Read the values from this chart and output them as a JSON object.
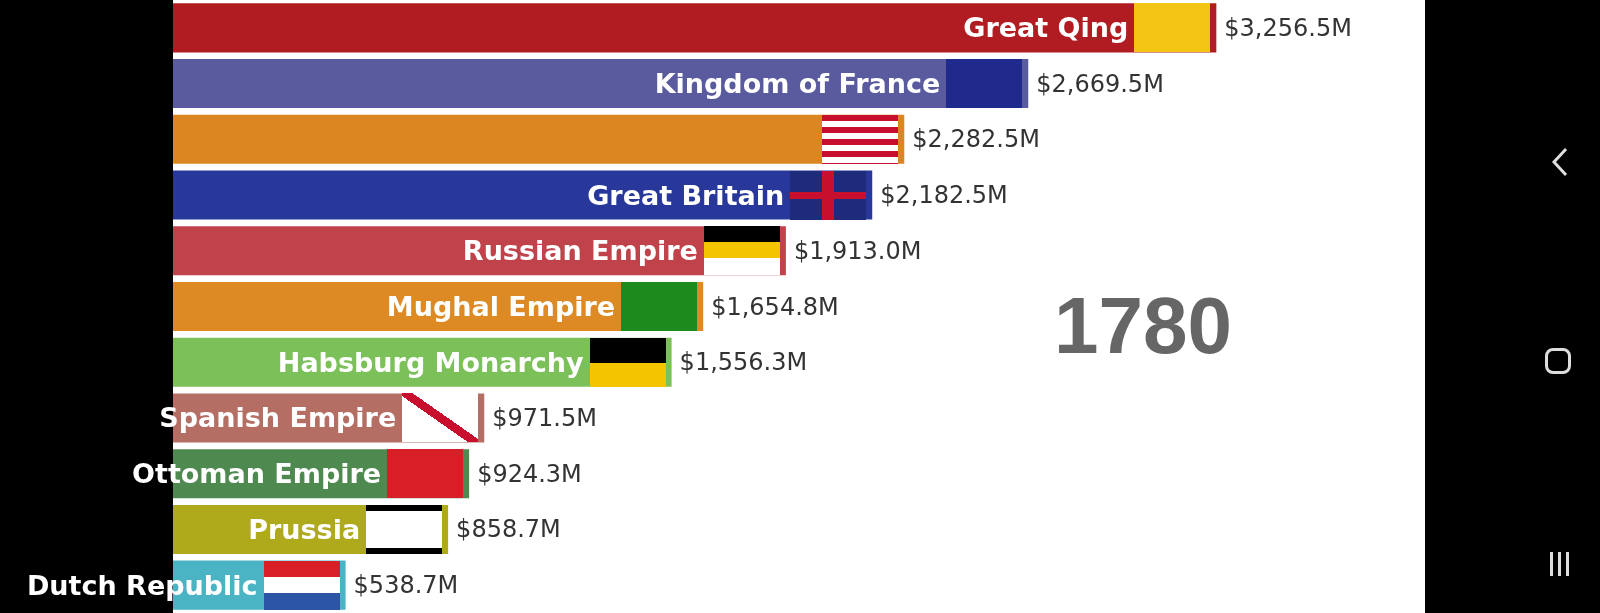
{
  "chart_data": {
    "type": "bar",
    "orientation": "horizontal",
    "categories": [
      "Great Qing",
      "Kingdom of France",
      null,
      "Great Britain",
      "Russian Empire",
      "Mughal Empire",
      "Habsburg Monarchy",
      "Spanish Empire",
      "Ottoman Empire",
      "Prussia",
      "Dutch Republic"
    ],
    "values": [
      3256.5,
      2669.5,
      2282.5,
      2182.5,
      1913.0,
      1654.8,
      1556.3,
      971.5,
      924.3,
      858.7,
      538.7
    ],
    "colors": [
      "#b01c22",
      "#5a5a9e",
      "#db8620",
      "#28389a",
      "#c0424a",
      "#de8a24",
      "#7cc05a",
      "#b46e64",
      "#4e8a50",
      "#aeaa1c",
      "#4ab4c4"
    ],
    "value_labels": [
      "$3,256.5M",
      "$2,669.5M",
      "$2,282.5M",
      "$2,182.5M",
      "$1,913.0M",
      "$1,654.8M",
      "$1,556.3M",
      "$971.5M",
      "$924.3M",
      "$858.7M",
      "$538.7M"
    ],
    "annotations": [
      "1780"
    ]
  }
}
